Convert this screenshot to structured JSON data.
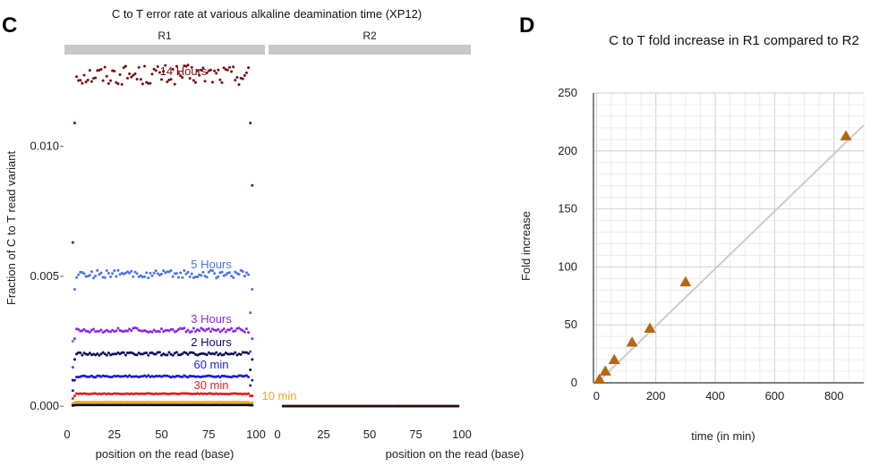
{
  "panel_c_letter": "C",
  "panel_d_letter": "D",
  "chart_data": [
    {
      "type": "scatter",
      "title": "C to T error rate at various alkaline deamination time (XP12)",
      "facets": [
        "R1",
        "R2"
      ],
      "xlabel": "position on the read (base)",
      "ylabel": "Fraction of C to T read variant",
      "xlim": [
        0,
        100
      ],
      "ylim": [
        -0.0002,
        0.0135
      ],
      "x_ticks": [
        "0",
        "25",
        "50",
        "75",
        "100"
      ],
      "y_ticks": [
        {
          "value": 0.0,
          "label": "0.000"
        },
        {
          "value": 0.005,
          "label": "0.005"
        },
        {
          "value": 0.01,
          "label": "0.010"
        }
      ],
      "series": [
        {
          "name": "14 Hours",
          "color": "#7a0f0f",
          "r1_level": 0.01275,
          "r1_edge_start": [
            0.0063,
            0.0109
          ],
          "r1_edge_end": [
            0.0109,
            0.0085
          ],
          "r2_level": 2e-05
        },
        {
          "name": "5 Hours",
          "color": "#4a74e8",
          "r1_level": 0.00508,
          "r1_edge_start": [
            0.0025,
            0.0045
          ],
          "r1_edge_end": [
            0.0036,
            0.0045
          ],
          "r2_level": 1e-05
        },
        {
          "name": "3 Hours",
          "color": "#8b2be2",
          "r1_level": 0.00293,
          "r1_edge_start": [
            0.0015,
            0.0026
          ],
          "r1_edge_end": [
            0.0021,
            0.0026
          ],
          "r2_level": 1e-05
        },
        {
          "name": "2 Hours",
          "color": "#101060",
          "r1_level": 0.00202,
          "r1_edge_start": [
            0.001,
            0.0018
          ],
          "r1_edge_end": [
            0.0014,
            0.0018
          ],
          "r2_level": 1e-05
        },
        {
          "name": "60 min",
          "color": "#1a1ad8",
          "r1_level": 0.00115,
          "r1_edge_start": [
            0.0006,
            0.001
          ],
          "r1_edge_end": [
            0.0008,
            0.001
          ],
          "r2_level": 1e-05
        },
        {
          "name": "30 min",
          "color": "#e02020",
          "r1_level": 0.00048,
          "r1_edge_start": [
            0.0003,
            0.0004
          ],
          "r1_edge_end": [
            0.0004,
            0.0004
          ],
          "r2_level": 1e-05
        },
        {
          "name": "10 min",
          "color": "#f5a623",
          "r1_level": 0.00016,
          "r1_edge_start": [
            0.0001,
            0.00015
          ],
          "r1_edge_end": [
            0.00012,
            0.00015
          ],
          "r2_level": 1e-05
        },
        {
          "name": "",
          "color": "#111111",
          "r1_level": 5e-05,
          "r1_edge_start": [
            3e-05,
            4e-05
          ],
          "r1_edge_end": [
            4e-05,
            4e-05
          ],
          "r2_level": 0.0
        }
      ]
    },
    {
      "type": "scatter",
      "title": "C to T fold increase in R1 compared to R2",
      "xlabel": "time (in min)",
      "ylabel": "Fold increase",
      "xlim": [
        -10,
        900
      ],
      "ylim": [
        0,
        250
      ],
      "x_ticks": [
        0,
        200,
        400,
        600,
        800
      ],
      "y_ticks": [
        0,
        50,
        100,
        150,
        200,
        250
      ],
      "marker_color": "#b8650f",
      "trend_color": "#cccccc",
      "points": [
        {
          "x": 10,
          "y": 3
        },
        {
          "x": 30,
          "y": 10
        },
        {
          "x": 60,
          "y": 20
        },
        {
          "x": 120,
          "y": 35
        },
        {
          "x": 180,
          "y": 47
        },
        {
          "x": 300,
          "y": 87
        },
        {
          "x": 840,
          "y": 213
        }
      ],
      "trend_line": {
        "x": [
          0,
          900
        ],
        "y": [
          -0.6,
          222.3
        ]
      }
    }
  ]
}
